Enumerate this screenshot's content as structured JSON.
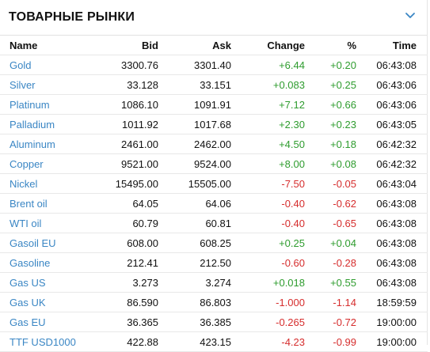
{
  "widget": {
    "title": "ТОВАРНЫЕ РЫНКИ",
    "collapse_icon": "chevron-down-icon"
  },
  "columns": {
    "name": "Name",
    "bid": "Bid",
    "ask": "Ask",
    "change": "Change",
    "pct": "%",
    "time": "Time"
  },
  "colors": {
    "positive": "#2e9c2e",
    "negative": "#d62d2d",
    "link": "#3a86c4"
  },
  "rows": [
    {
      "name": "Gold",
      "bid": "3300.76",
      "ask": "3301.40",
      "change": "+6.44",
      "pct": "+0.20",
      "time": "06:43:08"
    },
    {
      "name": "Silver",
      "bid": "33.128",
      "ask": "33.151",
      "change": "+0.083",
      "pct": "+0.25",
      "time": "06:43:06"
    },
    {
      "name": "Platinum",
      "bid": "1086.10",
      "ask": "1091.91",
      "change": "+7.12",
      "pct": "+0.66",
      "time": "06:43:06"
    },
    {
      "name": "Palladium",
      "bid": "1011.92",
      "ask": "1017.68",
      "change": "+2.30",
      "pct": "+0.23",
      "time": "06:43:05"
    },
    {
      "name": "Aluminum",
      "bid": "2461.00",
      "ask": "2462.00",
      "change": "+4.50",
      "pct": "+0.18",
      "time": "06:42:32"
    },
    {
      "name": "Copper",
      "bid": "9521.00",
      "ask": "9524.00",
      "change": "+8.00",
      "pct": "+0.08",
      "time": "06:42:32"
    },
    {
      "name": "Nickel",
      "bid": "15495.00",
      "ask": "15505.00",
      "change": "-7.50",
      "pct": "-0.05",
      "time": "06:43:04"
    },
    {
      "name": "Brent oil",
      "bid": "64.05",
      "ask": "64.06",
      "change": "-0.40",
      "pct": "-0.62",
      "time": "06:43:08"
    },
    {
      "name": "WTI oil",
      "bid": "60.79",
      "ask": "60.81",
      "change": "-0.40",
      "pct": "-0.65",
      "time": "06:43:08"
    },
    {
      "name": "Gasoil EU",
      "bid": "608.00",
      "ask": "608.25",
      "change": "+0.25",
      "pct": "+0.04",
      "time": "06:43:08"
    },
    {
      "name": "Gasoline",
      "bid": "212.41",
      "ask": "212.50",
      "change": "-0.60",
      "pct": "-0.28",
      "time": "06:43:08"
    },
    {
      "name": "Gas US",
      "bid": "3.273",
      "ask": "3.274",
      "change": "+0.018",
      "pct": "+0.55",
      "time": "06:43:08"
    },
    {
      "name": "Gas UK",
      "bid": "86.590",
      "ask": "86.803",
      "change": "-1.000",
      "pct": "-1.14",
      "time": "18:59:59"
    },
    {
      "name": "Gas EU",
      "bid": "36.365",
      "ask": "36.385",
      "change": "-0.265",
      "pct": "-0.72",
      "time": "19:00:00"
    },
    {
      "name": "TTF USD1000",
      "bid": "422.88",
      "ask": "423.15",
      "change": "-4.23",
      "pct": "-0.99",
      "time": "19:00:00"
    }
  ]
}
